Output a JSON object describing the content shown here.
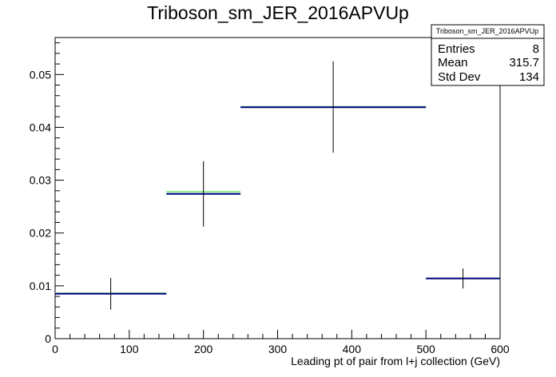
{
  "chart_data": {
    "type": "histogram",
    "title": "Triboson_sm_JER_2016APVUp",
    "xlabel": "Leading pt of pair from l+j collection (GeV)",
    "ylabel": "",
    "xlim": [
      0,
      600
    ],
    "ylim": [
      0,
      0.057
    ],
    "x_ticks": [
      0,
      100,
      200,
      300,
      400,
      500,
      600
    ],
    "x_tick_labels": [
      "0",
      "100",
      "200",
      "300",
      "400",
      "500",
      "600"
    ],
    "y_ticks": [
      0,
      0.01,
      0.02,
      0.03,
      0.04,
      0.05
    ],
    "y_tick_labels": [
      "0",
      "0.01",
      "0.02",
      "0.03",
      "0.04",
      "0.05"
    ],
    "grid": false,
    "series": [
      {
        "color": "#000080",
        "bins": [
          {
            "x_low": 0,
            "x_high": 150,
            "x_center": 75,
            "value": 0.0085,
            "err_low": 0.0055,
            "err_high": 0.0115
          },
          {
            "x_low": 150,
            "x_high": 250,
            "x_center": 200,
            "value": 0.0274,
            "err_low": 0.0212,
            "err_high": 0.0336
          },
          {
            "x_low": 250,
            "x_high": 500,
            "x_center": 375,
            "value": 0.0438,
            "err_low": 0.0352,
            "err_high": 0.0525
          },
          {
            "x_low": 500,
            "x_high": 600,
            "x_center": 550,
            "value": 0.0114,
            "err_low": 0.0095,
            "err_high": 0.0133
          }
        ]
      },
      {
        "color": "#90ee90",
        "bins": [
          {
            "x_low": 0,
            "x_high": 150,
            "value": 0.0086
          },
          {
            "x_low": 150,
            "x_high": 250,
            "value": 0.0278
          },
          {
            "x_low": 250,
            "x_high": 500,
            "value": 0.0439
          },
          {
            "x_low": 500,
            "x_high": 600,
            "value": 0.0114
          }
        ]
      }
    ],
    "stats_box": {
      "title": "Triboson_sm_JER_2016APVUp",
      "rows": [
        {
          "label": "Entries",
          "value": "8"
        },
        {
          "label": "Mean",
          "value": "315.7"
        },
        {
          "label": "Std Dev",
          "value": "134"
        }
      ]
    }
  }
}
